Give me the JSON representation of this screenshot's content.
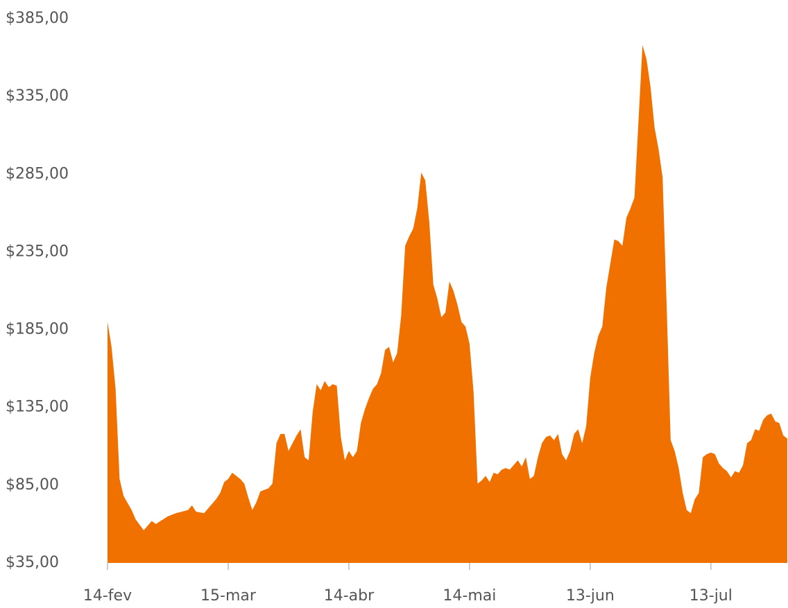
{
  "chart_data": {
    "type": "area",
    "color": "#f07000",
    "xlim": [
      0,
      169
    ],
    "xticks": [
      {
        "value": 0,
        "label": "14-fev"
      },
      {
        "value": 30,
        "label": "15-mar"
      },
      {
        "value": 60,
        "label": "14-abr"
      },
      {
        "value": 90,
        "label": "14-mai"
      },
      {
        "value": 120,
        "label": "13-jun"
      },
      {
        "value": 150,
        "label": "13-jul"
      }
    ],
    "ylim": [
      35,
      385
    ],
    "yticks": [
      {
        "value": 35,
        "label": "$35,00"
      },
      {
        "value": 85,
        "label": "$85,00"
      },
      {
        "value": 135,
        "label": "$135,00"
      },
      {
        "value": 185,
        "label": "$185,00"
      },
      {
        "value": 235,
        "label": "$235,00"
      },
      {
        "value": 285,
        "label": "$285,00"
      },
      {
        "value": 335,
        "label": "$335,00"
      },
      {
        "value": 385,
        "label": "$385,00"
      }
    ],
    "x": [
      0,
      1,
      2,
      3,
      4,
      6,
      7,
      9,
      11,
      12,
      15,
      17,
      20,
      21,
      22,
      24,
      27,
      28,
      29,
      30,
      31,
      33,
      34,
      35,
      36,
      37,
      38,
      40,
      41,
      42,
      43,
      44,
      45,
      47,
      48,
      49,
      50,
      51,
      52,
      53,
      54,
      55,
      56,
      57,
      58,
      59,
      60,
      61,
      62,
      63,
      64,
      65,
      66,
      67,
      68,
      69,
      70,
      71,
      72,
      73,
      74,
      75,
      76,
      77,
      78,
      79,
      80,
      81,
      82,
      83,
      84,
      85,
      86,
      87,
      88,
      89,
      90,
      91,
      92,
      93,
      94,
      95,
      96,
      97,
      98,
      99,
      100,
      101,
      102,
      103,
      104,
      105,
      106,
      107,
      108,
      109,
      110,
      111,
      112,
      113,
      114,
      115,
      116,
      117,
      118,
      119,
      120,
      121,
      122,
      123,
      124,
      126,
      127,
      128,
      129,
      130,
      131,
      132,
      133,
      134,
      135,
      136,
      137,
      138,
      139,
      140,
      141,
      142,
      143,
      144,
      145,
      146,
      147,
      148,
      149,
      150,
      151,
      152,
      153,
      154,
      155,
      156,
      157,
      158,
      159,
      160,
      161,
      162,
      163,
      164,
      165,
      166,
      167,
      168,
      169
    ],
    "values": [
      190,
      174,
      147,
      89,
      78,
      69,
      63,
      56,
      62,
      60,
      65,
      67,
      69,
      72,
      68,
      67,
      76,
      80,
      87,
      89,
      93,
      89,
      86,
      77,
      69,
      74,
      81,
      83,
      86,
      112,
      118,
      118,
      107,
      117,
      121,
      103,
      101,
      132,
      150,
      146,
      152,
      148,
      150,
      149,
      116,
      101,
      107,
      103,
      107,
      125,
      134,
      141,
      147,
      150,
      157,
      172,
      174,
      164,
      170,
      194,
      239,
      245,
      250,
      263,
      286,
      281,
      254,
      214,
      205,
      193,
      196,
      216,
      210,
      201,
      190,
      187,
      176,
      145,
      86,
      88,
      91,
      87,
      93,
      92,
      95,
      96,
      95,
      98,
      101,
      97,
      103,
      89,
      91,
      103,
      112,
      116,
      117,
      114,
      118,
      105,
      101,
      107,
      118,
      121,
      112,
      123,
      154,
      170,
      181,
      187,
      212,
      243,
      242,
      239,
      257,
      263,
      270,
      319,
      368,
      359,
      341,
      315,
      301,
      283,
      201,
      114,
      107,
      96,
      80,
      69,
      67,
      76,
      80,
      103,
      105,
      106,
      105,
      99,
      96,
      94,
      90,
      94,
      93,
      98,
      112,
      114,
      121,
      120,
      127,
      130,
      131,
      126,
      125,
      117,
      115
    ]
  }
}
